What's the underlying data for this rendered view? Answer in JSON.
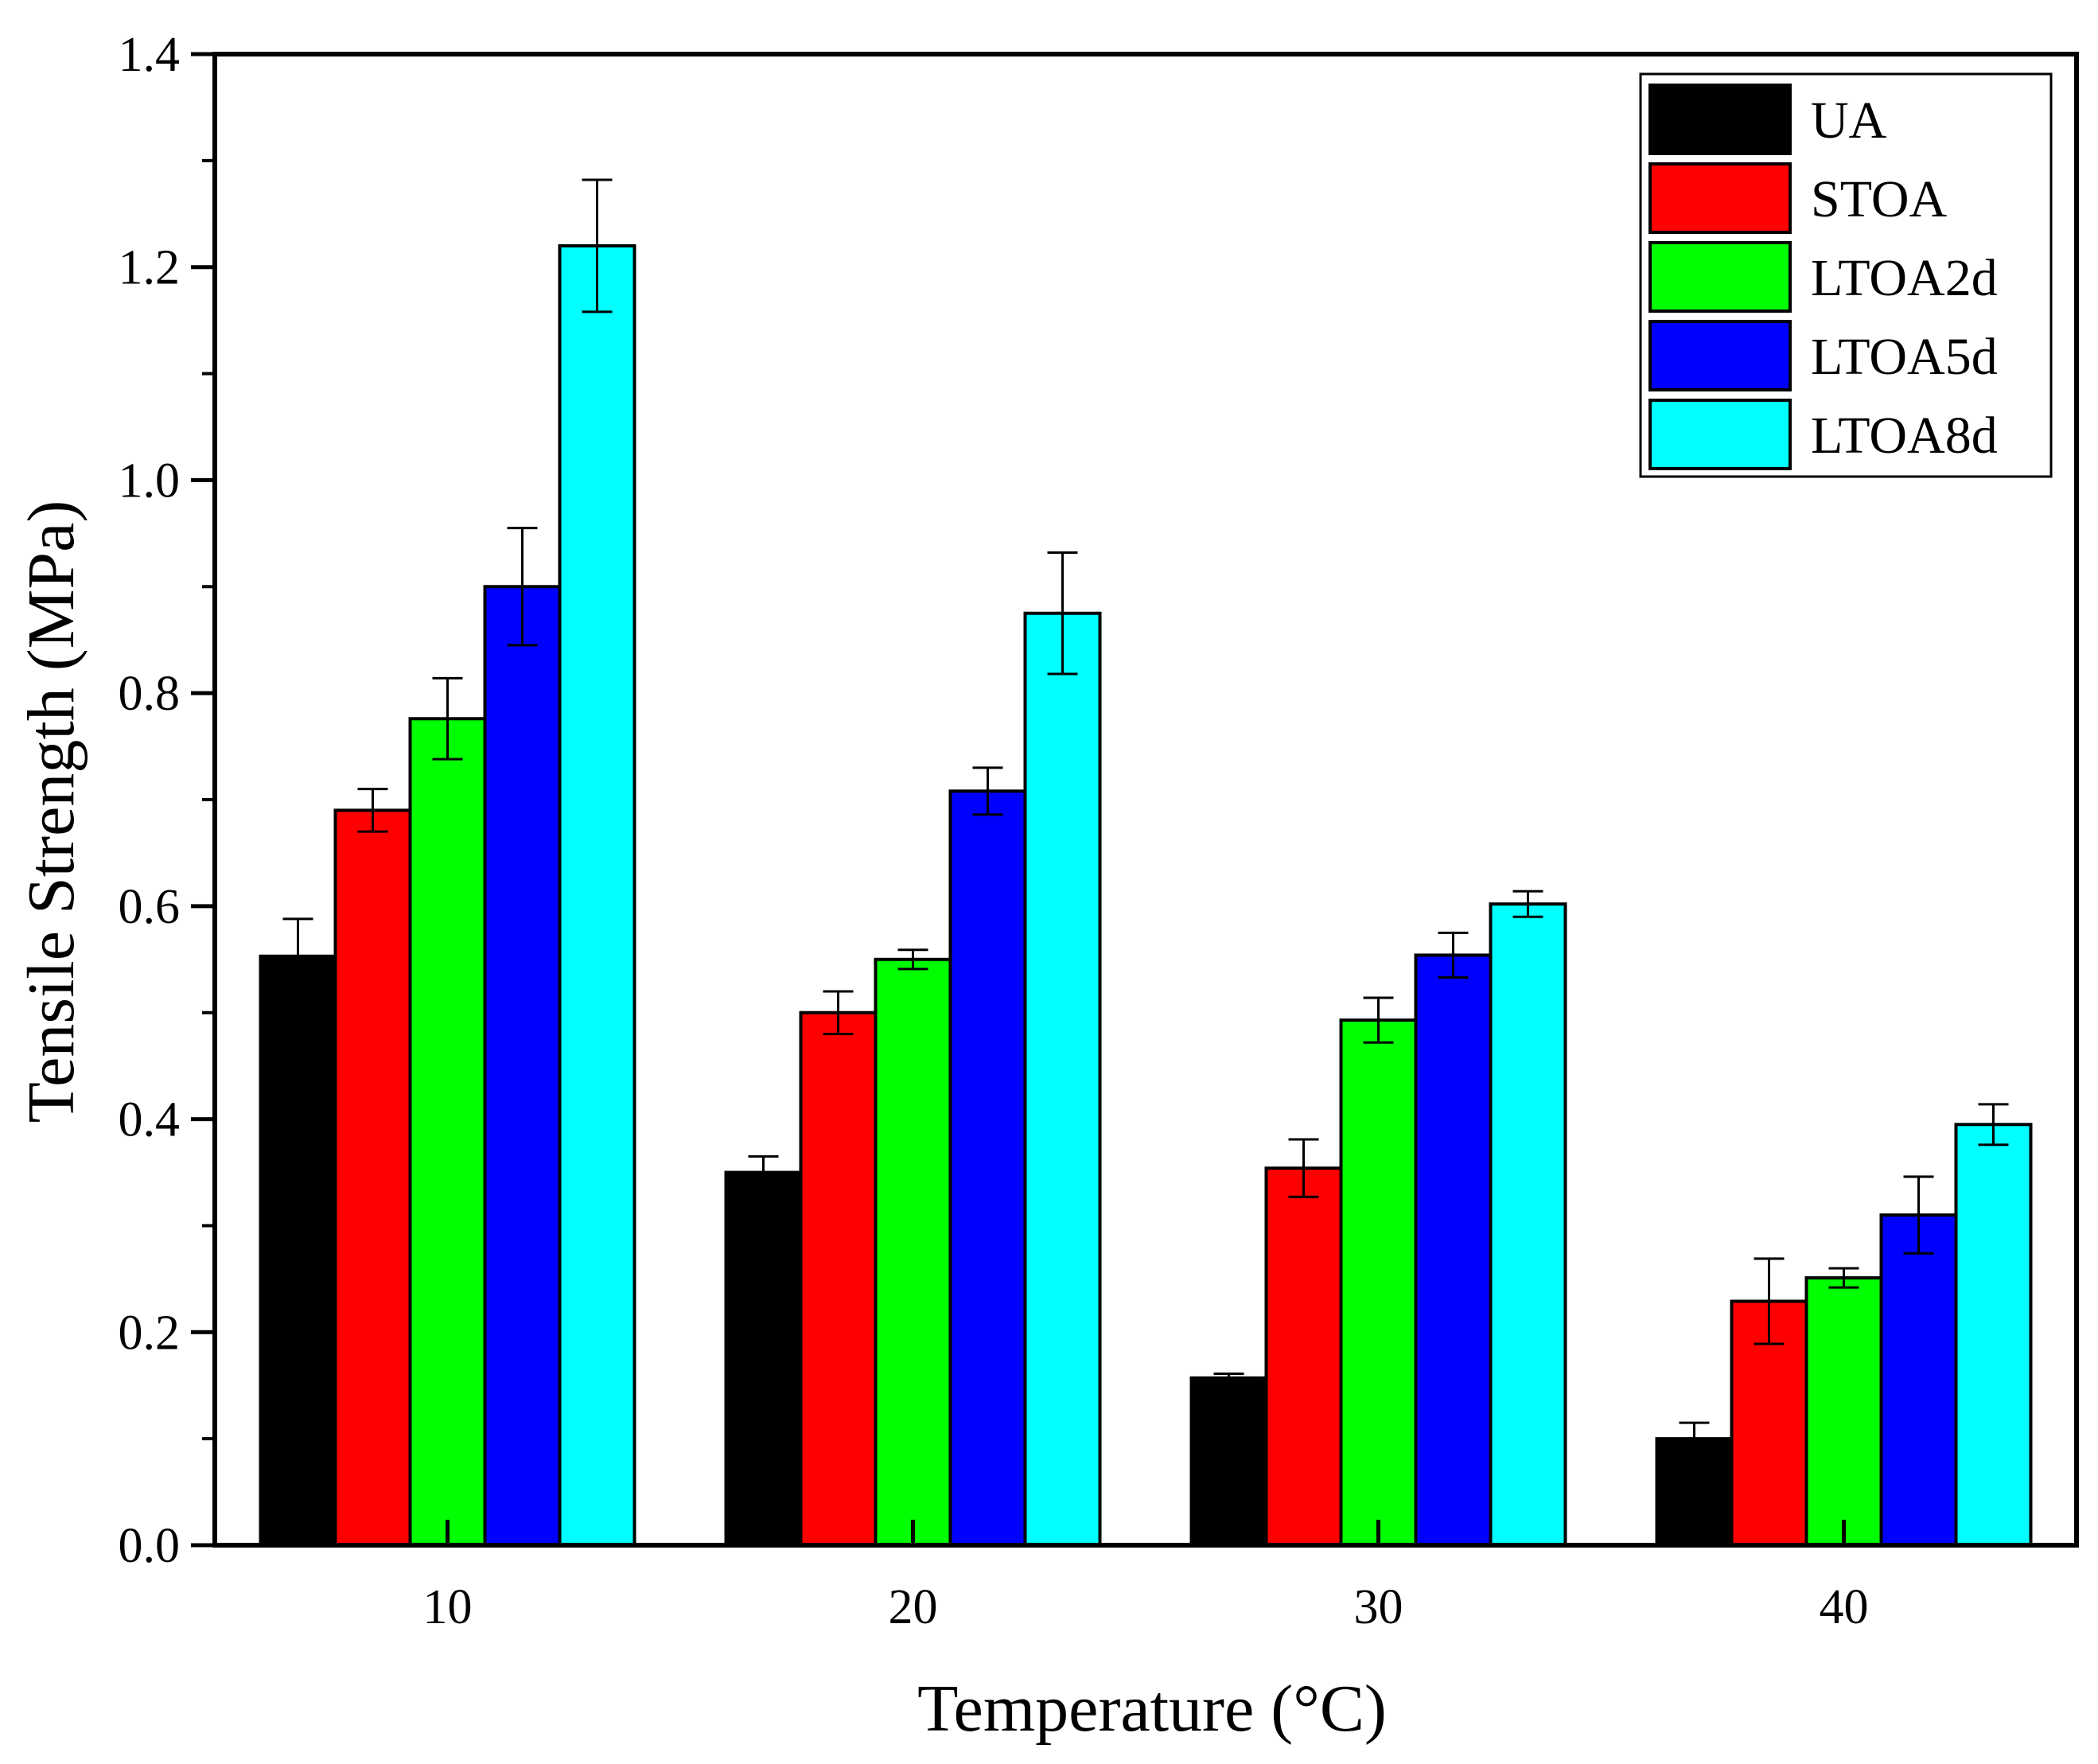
{
  "chart_data": {
    "type": "bar",
    "title": "",
    "xlabel": "Temperature (°C)",
    "ylabel": "Tensile Strength (MPa)",
    "categories": [
      "10",
      "20",
      "30",
      "40"
    ],
    "ylim": [
      0,
      1.4
    ],
    "yticks": [
      "0.0",
      "0.2",
      "0.4",
      "0.6",
      "0.8",
      "1.0",
      "1.2",
      "1.4"
    ],
    "grid": false,
    "legend_position": "top-right",
    "series": [
      {
        "name": "UA",
        "color": "#000000",
        "values": [
          0.553,
          0.35,
          0.157,
          0.1
        ],
        "errors": [
          0.035,
          0.015,
          0.004,
          0.015
        ]
      },
      {
        "name": "STOA",
        "color": "#ff0000",
        "values": [
          0.69,
          0.5,
          0.354,
          0.229
        ],
        "errors": [
          0.02,
          0.02,
          0.027,
          0.04
        ]
      },
      {
        "name": "LTOA2d",
        "color": "#00ff00",
        "values": [
          0.776,
          0.55,
          0.493,
          0.251
        ],
        "errors": [
          0.038,
          0.009,
          0.021,
          0.009
        ]
      },
      {
        "name": "LTOA5d",
        "color": "#0000ff",
        "values": [
          0.9,
          0.708,
          0.554,
          0.31
        ],
        "errors": [
          0.055,
          0.022,
          0.021,
          0.036
        ]
      },
      {
        "name": "LTOA8d",
        "color": "#00ffff",
        "values": [
          1.22,
          0.875,
          0.602,
          0.395
        ],
        "errors": [
          0.062,
          0.057,
          0.012,
          0.019
        ]
      }
    ]
  }
}
